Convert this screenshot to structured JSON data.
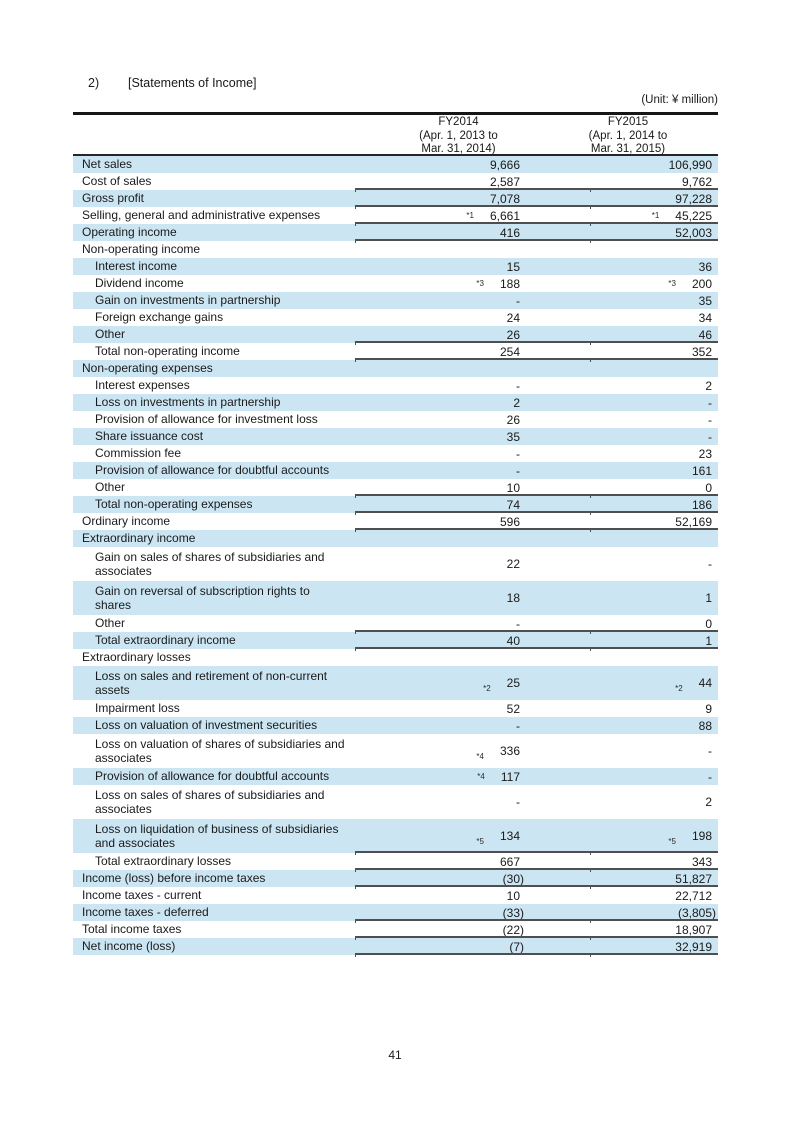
{
  "page": {
    "section_number": "2)",
    "title": "[Statements of Income]",
    "unit_note": "(Unit: ¥ million)",
    "page_number": "41"
  },
  "table": {
    "colors": {
      "row_highlight": "#cbe5f2",
      "rule": "#4f4f4f"
    },
    "columns": [
      {
        "fiscal_year": "FY2014",
        "period_line1": "(Apr. 1, 2013 to",
        "period_line2": "Mar. 31, 2014)"
      },
      {
        "fiscal_year": "FY2015",
        "period_line1": "(Apr. 1, 2014 to",
        "period_line2": "Mar. 31, 2015)"
      }
    ],
    "rows": [
      {
        "label": "Net sales",
        "indent": false,
        "blue": true,
        "v1": "9,666",
        "v2": "106,990",
        "fn1": "",
        "fn2": "",
        "rule": false,
        "tall": false
      },
      {
        "label": "Cost of sales",
        "indent": false,
        "blue": false,
        "v1": "2,587",
        "v2": "9,762",
        "fn1": "",
        "fn2": "",
        "rule": true,
        "tall": false
      },
      {
        "label": "Gross profit",
        "indent": false,
        "blue": true,
        "v1": "7,078",
        "v2": "97,228",
        "fn1": "",
        "fn2": "",
        "rule": true,
        "tall": false
      },
      {
        "label": "Selling, general and administrative expenses",
        "indent": false,
        "blue": false,
        "v1": "6,661",
        "v2": "45,225",
        "fn1": "*1",
        "fn2": "*1",
        "rule": true,
        "tall": false
      },
      {
        "label": "Operating income",
        "indent": false,
        "blue": true,
        "v1": "416",
        "v2": "52,003",
        "fn1": "",
        "fn2": "",
        "rule": true,
        "tall": false
      },
      {
        "label": "Non-operating income",
        "indent": false,
        "blue": false,
        "v1": null,
        "v2": null,
        "fn1": "",
        "fn2": "",
        "rule": false,
        "tall": false
      },
      {
        "label": "Interest income",
        "indent": true,
        "blue": true,
        "v1": "15",
        "v2": "36",
        "fn1": "",
        "fn2": "",
        "rule": false,
        "tall": false
      },
      {
        "label": "Dividend income",
        "indent": true,
        "blue": false,
        "v1": "188",
        "v2": "200",
        "fn1": "*3",
        "fn2": "*3",
        "rule": false,
        "tall": false
      },
      {
        "label": "Gain on investments in partnership",
        "indent": true,
        "blue": true,
        "v1": "-",
        "v2": "35",
        "fn1": "",
        "fn2": "",
        "rule": false,
        "tall": false
      },
      {
        "label": "Foreign exchange gains",
        "indent": true,
        "blue": false,
        "v1": "24",
        "v2": "34",
        "fn1": "",
        "fn2": "",
        "rule": false,
        "tall": false
      },
      {
        "label": "Other",
        "indent": true,
        "blue": true,
        "v1": "26",
        "v2": "46",
        "fn1": "",
        "fn2": "",
        "rule": true,
        "tall": false
      },
      {
        "label": "Total non-operating income",
        "indent": true,
        "blue": false,
        "v1": "254",
        "v2": "352",
        "fn1": "",
        "fn2": "",
        "rule": true,
        "tall": false
      },
      {
        "label": "Non-operating expenses",
        "indent": false,
        "blue": true,
        "v1": null,
        "v2": null,
        "fn1": "",
        "fn2": "",
        "rule": false,
        "tall": false
      },
      {
        "label": "Interest expenses",
        "indent": true,
        "blue": false,
        "v1": "-",
        "v2": "2",
        "fn1": "",
        "fn2": "",
        "rule": false,
        "tall": false
      },
      {
        "label": "Loss on investments in partnership",
        "indent": true,
        "blue": true,
        "v1": "2",
        "v2": "-",
        "fn1": "",
        "fn2": "",
        "rule": false,
        "tall": false
      },
      {
        "label": "Provision of allowance for investment loss",
        "indent": true,
        "blue": false,
        "v1": "26",
        "v2": "-",
        "fn1": "",
        "fn2": "",
        "rule": false,
        "tall": false
      },
      {
        "label": "Share issuance cost",
        "indent": true,
        "blue": true,
        "v1": "35",
        "v2": "-",
        "fn1": "",
        "fn2": "",
        "rule": false,
        "tall": false
      },
      {
        "label": "Commission fee",
        "indent": true,
        "blue": false,
        "v1": "-",
        "v2": "23",
        "fn1": "",
        "fn2": "",
        "rule": false,
        "tall": false
      },
      {
        "label": "Provision of allowance for doubtful accounts",
        "indent": true,
        "blue": true,
        "v1": "-",
        "v2": "161",
        "fn1": "",
        "fn2": "",
        "rule": false,
        "tall": false
      },
      {
        "label": "Other",
        "indent": true,
        "blue": false,
        "v1": "10",
        "v2": "0",
        "fn1": "",
        "fn2": "",
        "rule": true,
        "tall": false
      },
      {
        "label": "Total non-operating expenses",
        "indent": true,
        "blue": true,
        "v1": "74",
        "v2": "186",
        "fn1": "",
        "fn2": "",
        "rule": true,
        "tall": false
      },
      {
        "label": "Ordinary income",
        "indent": false,
        "blue": false,
        "v1": "596",
        "v2": "52,169",
        "fn1": "",
        "fn2": "",
        "rule": true,
        "tall": false
      },
      {
        "label": "Extraordinary income",
        "indent": false,
        "blue": true,
        "v1": null,
        "v2": null,
        "fn1": "",
        "fn2": "",
        "rule": false,
        "tall": false
      },
      {
        "label": "Gain on sales of shares of subsidiaries and\nassociates",
        "indent": true,
        "blue": false,
        "v1": "22",
        "v2": "-",
        "fn1": "",
        "fn2": "",
        "rule": false,
        "tall": true
      },
      {
        "label": "Gain on reversal of subscription rights to\nshares",
        "indent": true,
        "blue": true,
        "v1": "18",
        "v2": "1",
        "fn1": "",
        "fn2": "",
        "rule": false,
        "tall": true
      },
      {
        "label": "Other",
        "indent": true,
        "blue": false,
        "v1": "-",
        "v2": "0",
        "fn1": "",
        "fn2": "",
        "rule": true,
        "tall": false
      },
      {
        "label": "Total extraordinary income",
        "indent": true,
        "blue": true,
        "v1": "40",
        "v2": "1",
        "fn1": "",
        "fn2": "",
        "rule": true,
        "tall": false
      },
      {
        "label": "Extraordinary losses",
        "indent": false,
        "blue": false,
        "v1": null,
        "v2": null,
        "fn1": "",
        "fn2": "",
        "rule": false,
        "tall": false
      },
      {
        "label": "Loss on sales and retirement of non-current\nassets",
        "indent": true,
        "blue": true,
        "v1": "25",
        "v2": "44",
        "fn1": "*2",
        "fn2": "*2",
        "rule": false,
        "tall": true
      },
      {
        "label": "Impairment loss",
        "indent": true,
        "blue": false,
        "v1": "52",
        "v2": "9",
        "fn1": "",
        "fn2": "",
        "rule": false,
        "tall": false
      },
      {
        "label": "Loss on valuation of investment securities",
        "indent": true,
        "blue": true,
        "v1": "-",
        "v2": "88",
        "fn1": "",
        "fn2": "",
        "rule": false,
        "tall": false
      },
      {
        "label": "Loss on valuation of shares of subsidiaries and\nassociates",
        "indent": true,
        "blue": false,
        "v1": "336",
        "v2": "-",
        "fn1": "*4",
        "fn2": "",
        "rule": false,
        "tall": true
      },
      {
        "label": "Provision of allowance for doubtful accounts",
        "indent": true,
        "blue": true,
        "v1": "117",
        "v2": "-",
        "fn1": "*4",
        "fn2": "",
        "rule": false,
        "tall": false
      },
      {
        "label": "Loss on sales of shares of subsidiaries and\nassociates",
        "indent": true,
        "blue": false,
        "v1": "-",
        "v2": "2",
        "fn1": "",
        "fn2": "",
        "rule": false,
        "tall": true
      },
      {
        "label": "Loss on liquidation of business of subsidiaries\nand associates",
        "indent": true,
        "blue": true,
        "v1": "134",
        "v2": "198",
        "fn1": "*5",
        "fn2": "*5",
        "rule": true,
        "tall": true
      },
      {
        "label": "Total extraordinary losses",
        "indent": true,
        "blue": false,
        "v1": "667",
        "v2": "343",
        "fn1": "",
        "fn2": "",
        "rule": true,
        "tall": false
      },
      {
        "label": "Income (loss) before income taxes",
        "indent": false,
        "blue": true,
        "v1": "(30)",
        "v2": "51,827",
        "fn1": "",
        "fn2": "",
        "rule": true,
        "tall": false
      },
      {
        "label": "Income taxes - current",
        "indent": false,
        "blue": false,
        "v1": "10",
        "v2": "22,712",
        "fn1": "",
        "fn2": "",
        "rule": false,
        "tall": false
      },
      {
        "label": "Income taxes - deferred",
        "indent": false,
        "blue": true,
        "v1": "(33)",
        "v2": "(3,805)",
        "fn1": "",
        "fn2": "",
        "rule": true,
        "tall": false
      },
      {
        "label": "Total income taxes",
        "indent": false,
        "blue": false,
        "v1": "(22)",
        "v2": "18,907",
        "fn1": "",
        "fn2": "",
        "rule": true,
        "tall": false
      },
      {
        "label": "Net income (loss)",
        "indent": false,
        "blue": true,
        "v1": "(7)",
        "v2": "32,919",
        "fn1": "",
        "fn2": "",
        "rule": true,
        "tall": false
      }
    ]
  }
}
